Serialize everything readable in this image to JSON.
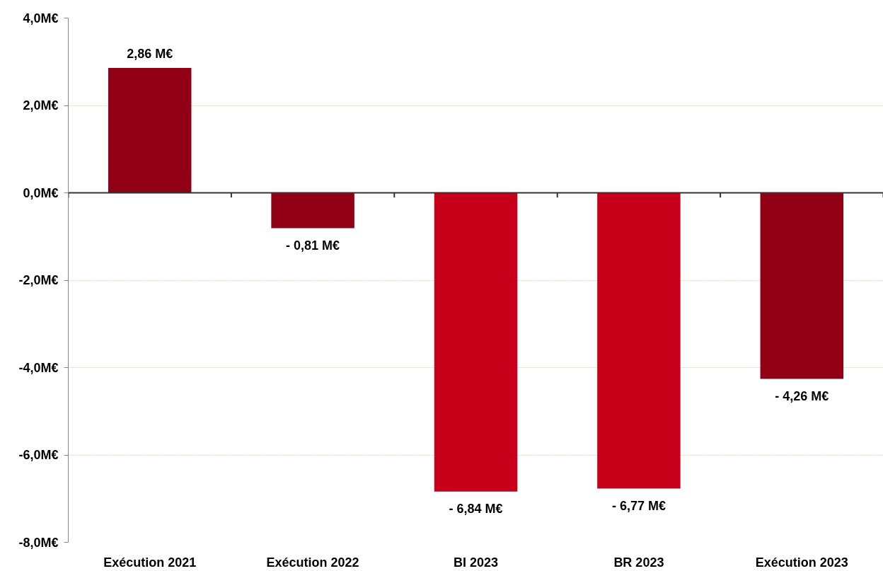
{
  "chart_data": {
    "type": "bar",
    "categories": [
      "Exécution 2021",
      "Exécution 2022",
      "BI 2023",
      "BR 2023",
      "Exécution 2023"
    ],
    "values": [
      2.86,
      -0.81,
      -6.84,
      -6.77,
      -4.26
    ],
    "colors": [
      "#910015",
      "#910015",
      "#c8001a",
      "#c8001a",
      "#910015"
    ],
    "value_labels": [
      "2,86 M€",
      "- 0,81 M€",
      "- 6,84 M€",
      "- 6,77 M€",
      "- 4,26 M€"
    ],
    "ylim": [
      -8,
      4
    ],
    "yticks": [
      {
        "value": -8,
        "label": "-8,0M€"
      },
      {
        "value": -6,
        "label": "-6,0M€"
      },
      {
        "value": -4,
        "label": "-4,0M€"
      },
      {
        "value": -2,
        "label": "-2,0M€"
      },
      {
        "value": 0,
        "label": "0,0M€"
      },
      {
        "value": 2,
        "label": "2,0M€"
      },
      {
        "value": 4,
        "label": "4,0M€"
      }
    ],
    "grid": "y"
  }
}
